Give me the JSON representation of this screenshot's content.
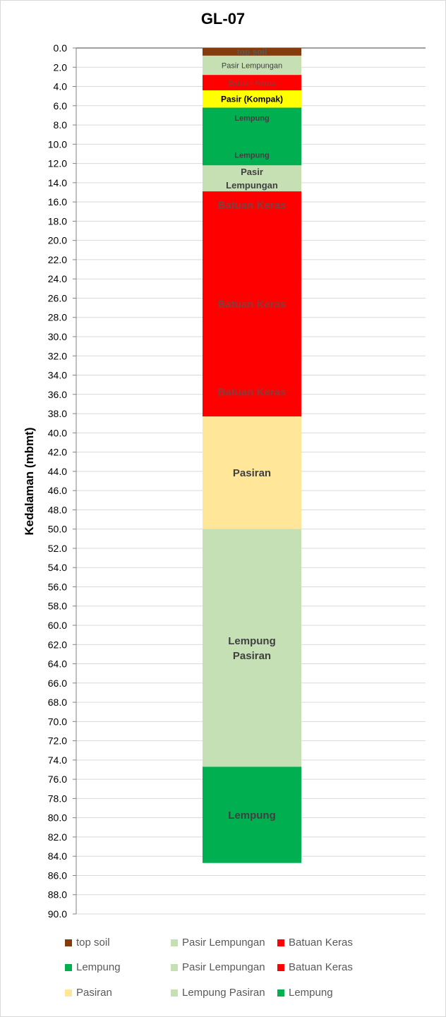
{
  "chart_data": {
    "type": "bar",
    "subtype": "stacked-column (borehole log)",
    "title": "GL-07",
    "ylabel": "Kedalaman (mbmt)",
    "xlabel": "",
    "ylim": [
      0,
      90
    ],
    "y_reversed": true,
    "y_tick_step": 2,
    "y_tick_format": "0.0",
    "grid": true,
    "legend_position": "bottom",
    "layers": [
      {
        "name": "top soil",
        "from": 0.0,
        "to": 0.8,
        "label": "top soil",
        "color": "#843c0c",
        "label_color": "#595959",
        "label_size": 12,
        "label_bold": true
      },
      {
        "name": "Pasir Lempungan",
        "from": 0.8,
        "to": 2.8,
        "label": "Pasir Lempungan",
        "color": "#c6e0b4",
        "label_color": "#404040",
        "label_size": 11,
        "label_bold": false
      },
      {
        "name": "Batuan Keras",
        "from": 2.8,
        "to": 4.4,
        "label": "Batuan Keras",
        "color": "#ff0000",
        "label_color": "#7f3f3f",
        "label_size": 11,
        "label_bold": false
      },
      {
        "name": "Pasir (Kompak)",
        "from": 4.4,
        "to": 6.2,
        "label": "Pasir (Kompak)",
        "color": "#ffff00",
        "label_color": "#000000",
        "label_size": 12,
        "label_bold": true
      },
      {
        "name": "Lempung",
        "from": 6.2,
        "to": 12.2,
        "label": "Lempung",
        "extra_labels": [
          "Lempung"
        ],
        "color": "#00b050",
        "label_color": "#404040",
        "label_size": 11,
        "label_bold": true
      },
      {
        "name": "Pasir Lempungan",
        "from": 12.2,
        "to": 14.9,
        "label": "Pasir\nLempungan",
        "color": "#c6e0b4",
        "label_color": "#404040",
        "label_size": 13,
        "label_bold": true
      },
      {
        "name": "Batuan Keras",
        "from": 14.9,
        "to": 38.3,
        "label": "Batuan Keras",
        "extra_labels": [
          "Batuan Keras",
          "Batuan Keras"
        ],
        "color": "#ff0000",
        "label_color": "#7f3f3f",
        "label_size": 15,
        "label_bold": true
      },
      {
        "name": "Pasiran",
        "from": 38.3,
        "to": 50.0,
        "label": "Pasiran",
        "color": "#ffe699",
        "label_color": "#404040",
        "label_size": 15,
        "label_bold": true
      },
      {
        "name": "Lempung Pasiran",
        "from": 50.0,
        "to": 74.7,
        "label": "Lempung\nPasiran",
        "color": "#c5e0b4",
        "label_color": "#404040",
        "label_size": 15,
        "label_bold": true
      },
      {
        "name": "Lempung",
        "from": 74.7,
        "to": 84.7,
        "label": "Lempung",
        "color": "#00b050",
        "label_color": "#404040",
        "label_size": 15,
        "label_bold": true
      }
    ],
    "legend": [
      {
        "name": "top soil",
        "color": "#843c0c"
      },
      {
        "name": "Pasir Lempungan",
        "color": "#c6e0b4"
      },
      {
        "name": "Batuan Keras",
        "color": "#ff0000"
      },
      {
        "name": "Lempung",
        "color": "#00b050"
      },
      {
        "name": "Pasir Lempungan",
        "color": "#c6e0b4"
      },
      {
        "name": "Batuan Keras",
        "color": "#ff0000"
      },
      {
        "name": "Pasiran",
        "color": "#ffe699"
      },
      {
        "name": "Lempung Pasiran",
        "color": "#c5e0b4"
      },
      {
        "name": "Lempung",
        "color": "#00b050"
      }
    ]
  }
}
